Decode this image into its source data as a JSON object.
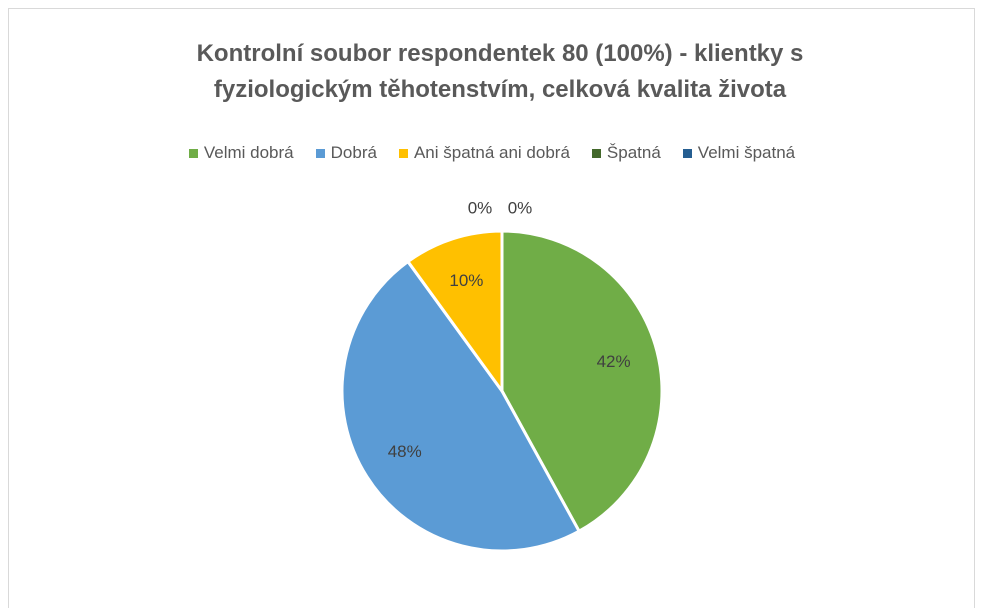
{
  "chart_data": {
    "type": "pie",
    "title": "Kontrolní soubor respondentek 80 (100%) - klientky s fyziologickým těhotenstvím, celková kvalita života",
    "categories": [
      "Velmi dobrá",
      "Dobrá",
      "Ani špatná ani dobrá",
      "Špatná",
      "Velmi špatná"
    ],
    "values": [
      42,
      48,
      10,
      0,
      0
    ],
    "value_labels": [
      "42%",
      "48%",
      "10%",
      "0%",
      "0%"
    ],
    "colors": [
      "#70ad47",
      "#5b9bd5",
      "#ffc000",
      "#43682b",
      "#255e91"
    ],
    "legend": "top"
  }
}
